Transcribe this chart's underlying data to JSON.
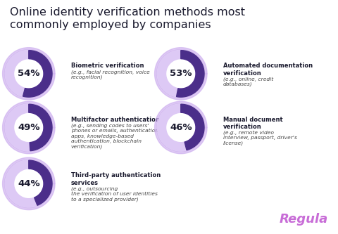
{
  "title": "Online identity verification methods most\ncommonly employed by companies",
  "title_fontsize": 11.5,
  "background_color": "#ffffff",
  "items": [
    {
      "pct": 54,
      "label_bold": "Biometric verification",
      "label_italic": "(e.g., facial recognition, voice\nrecognition)",
      "row": 0,
      "col": 0
    },
    {
      "pct": 53,
      "label_bold": "Automated documentation\nverification",
      "label_italic": "(e.g., online, credit\ndatabases)",
      "row": 0,
      "col": 1
    },
    {
      "pct": 49,
      "label_bold": "Multifactor authentication",
      "label_italic": "(e.g., sending codes to users'\nphones or emails, authentication\napps, knowledge-based\nauthentication, blockchain\nverification)",
      "row": 1,
      "col": 0
    },
    {
      "pct": 46,
      "label_bold": "Manual document\nverification",
      "label_italic": "(e.g., remote video\ninterview, passport, driver's\nlicense)",
      "row": 1,
      "col": 1
    },
    {
      "pct": 44,
      "label_bold": "Third-party authentication\nservices",
      "label_italic": "(e.g., outsourcing\nthe verification of user identities\nto a specialized provider)",
      "row": 2,
      "col": 0
    }
  ],
  "donut_filled_color": "#4b2e8a",
  "donut_light_color": "#ddc9f5",
  "donut_outer_ring_color": "#c9a8ee",
  "pct_fontsize": 9.5,
  "label_bold_fontsize": 6.0,
  "label_italic_fontsize": 5.4,
  "regula_color": "#c86dd7",
  "regula_fontsize": 13
}
